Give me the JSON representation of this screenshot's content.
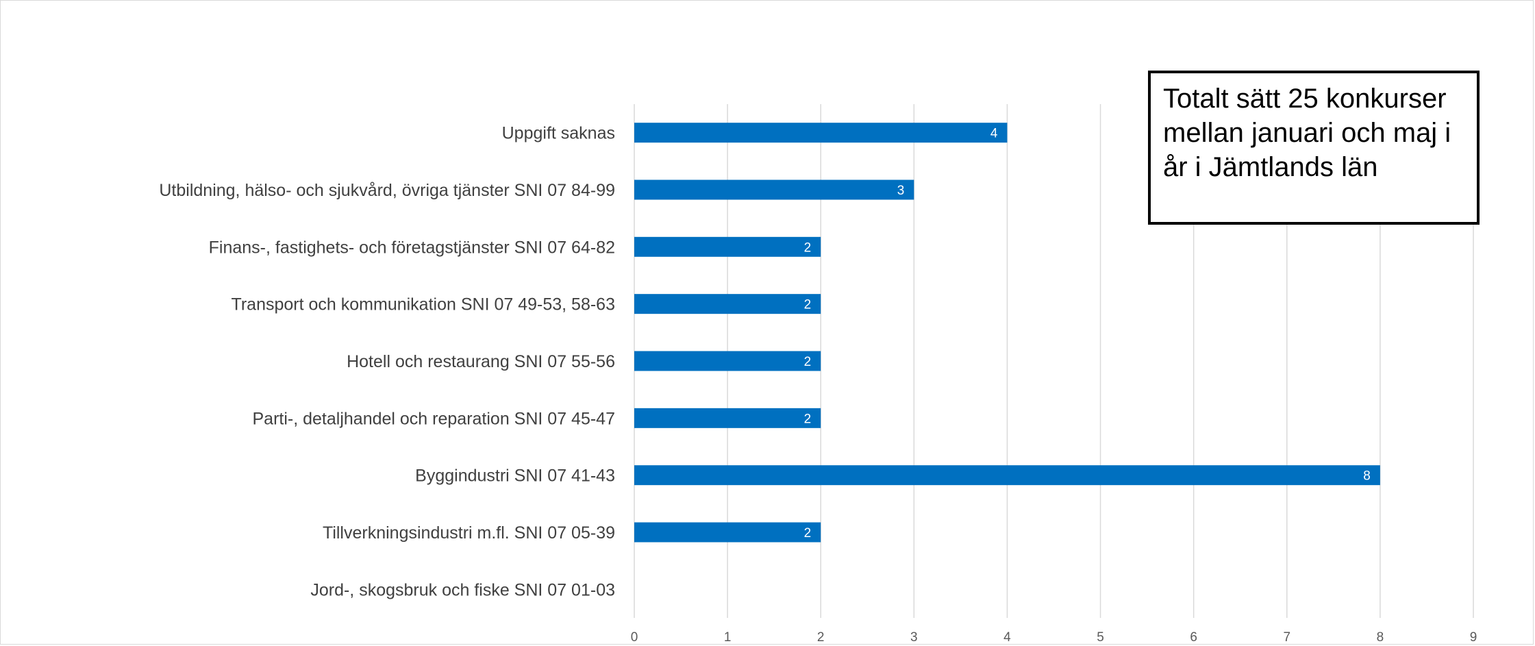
{
  "chart_data": {
    "type": "bar",
    "orientation": "horizontal",
    "categories": [
      "Uppgift saknas",
      "Utbildning, hälso- och sjukvård, övriga tjänster SNI 07 84-99",
      "Finans-, fastighets- och företagstjänster SNI 07 64-82",
      "Transport och kommunikation SNI 07 49-53, 58-63",
      "Hotell och restaurang SNI 07 55-56",
      "Parti-, detaljhandel och reparation SNI 07 45-47",
      "Byggindustri SNI 07 41-43",
      "Tillverkningsindustri m.fl. SNI 07 05-39",
      "Jord-, skogsbruk och fiske SNI 07 01-03"
    ],
    "values": [
      4,
      3,
      2,
      2,
      2,
      2,
      8,
      2,
      0
    ],
    "data_labels": [
      "4",
      "3",
      "2",
      "2",
      "2",
      "2",
      "8",
      "2",
      ""
    ],
    "xlim": [
      0,
      9
    ],
    "x_ticks": [
      "0",
      "1",
      "2",
      "3",
      "4",
      "5",
      "6",
      "7",
      "8",
      "9"
    ],
    "grid": "vertical",
    "bar_color": "#0070c0",
    "annotation": "Totalt sätt 25 konkurser mellan januari och maj i år i Jämtlands län"
  }
}
